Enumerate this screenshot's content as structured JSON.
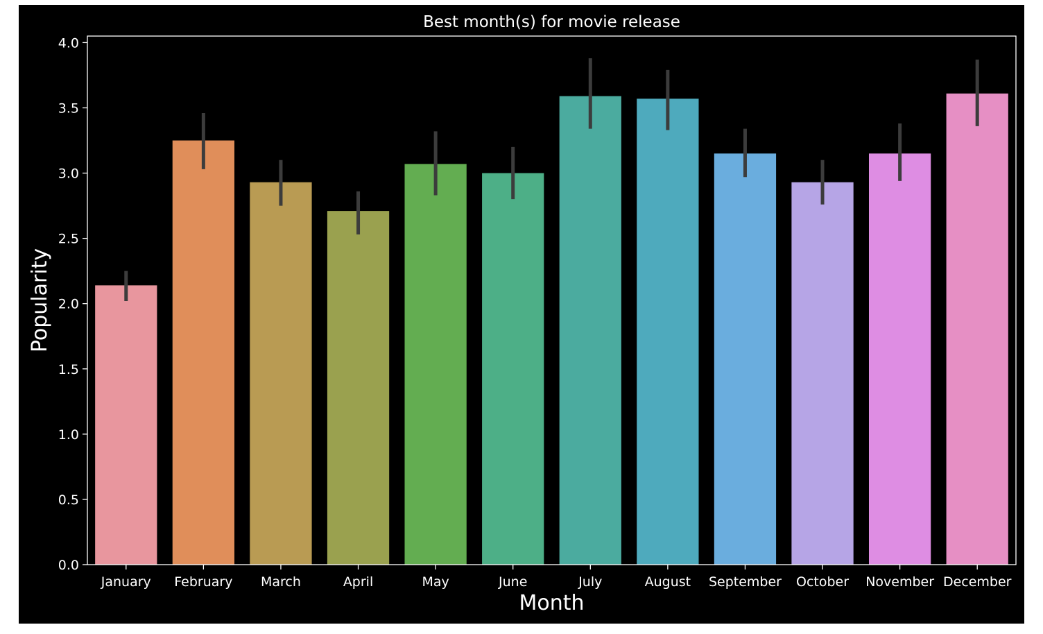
{
  "chart_data": {
    "type": "bar",
    "title": "Best month(s) for movie release",
    "xlabel": "Month",
    "ylabel": "Popularity",
    "ylim": [
      0,
      4.05
    ],
    "yticks": [
      "0.0",
      "0.5",
      "1.0",
      "1.5",
      "2.0",
      "2.5",
      "3.0",
      "3.5",
      "4.0"
    ],
    "grid": false,
    "legend": "none",
    "background": "#000000",
    "axis_color": "#ffffff",
    "error_bar_color": "#3c3c3c",
    "categories": [
      "January",
      "February",
      "March",
      "April",
      "May",
      "June",
      "July",
      "August",
      "September",
      "October",
      "November",
      "December"
    ],
    "values": [
      2.14,
      3.25,
      2.93,
      2.71,
      3.07,
      3.0,
      3.59,
      3.57,
      3.15,
      2.93,
      3.15,
      3.61
    ],
    "error_low": [
      2.02,
      3.03,
      2.75,
      2.53,
      2.83,
      2.8,
      3.34,
      3.33,
      2.97,
      2.76,
      2.94,
      3.36
    ],
    "error_high": [
      2.25,
      3.46,
      3.1,
      2.86,
      3.32,
      3.2,
      3.88,
      3.79,
      3.34,
      3.1,
      3.38,
      3.87
    ],
    "colors": [
      "#e8969e",
      "#e08e5a",
      "#b99b53",
      "#9aa14f",
      "#63ad51",
      "#4daf87",
      "#4bab9f",
      "#4eaabd",
      "#6aadde",
      "#b6a5e6",
      "#de8de3",
      "#e68fc4"
    ]
  }
}
